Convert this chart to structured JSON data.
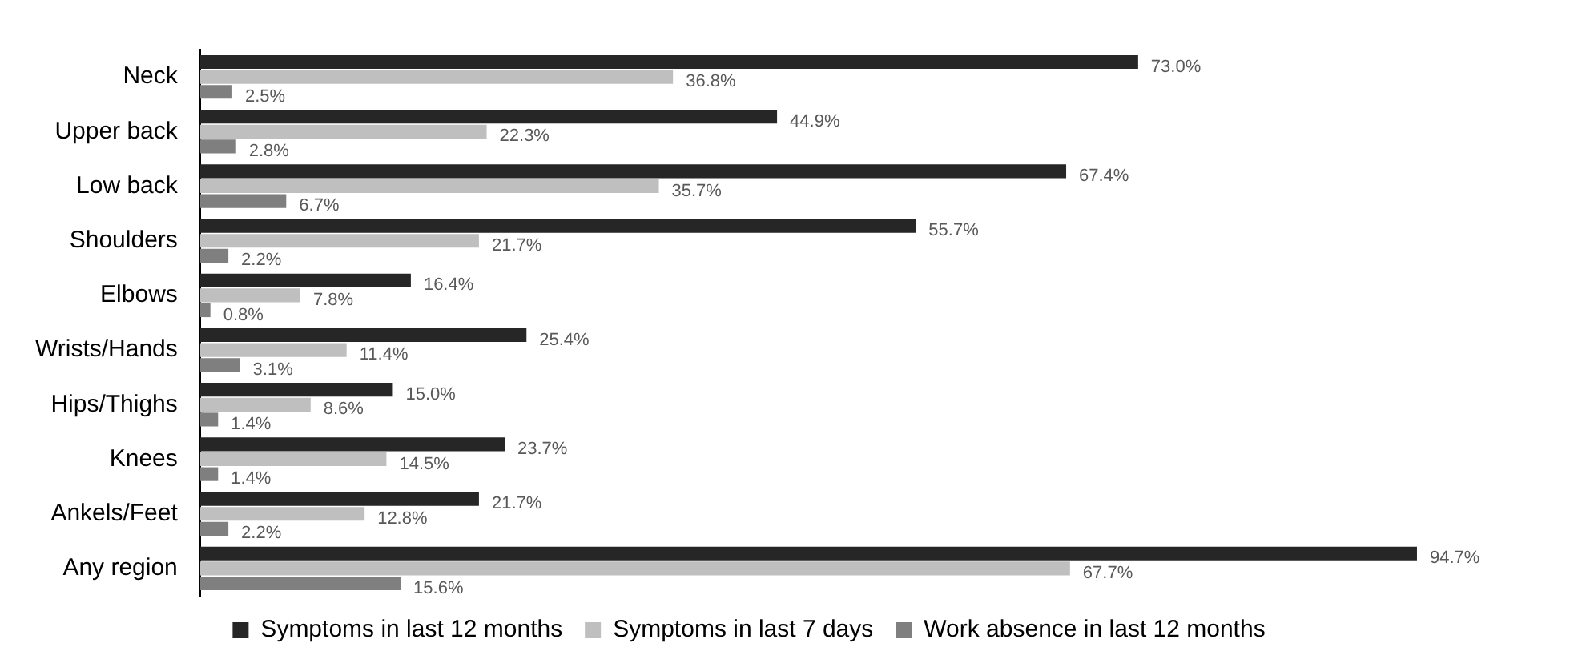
{
  "chart_data": {
    "type": "bar",
    "orientation": "horizontal",
    "categories": [
      "Neck",
      "Upper back",
      "Low back",
      "Shoulders",
      "Elbows",
      "Wrists/Hands",
      "Hips/Thighs",
      "Knees",
      "Ankels/Feet",
      "Any region"
    ],
    "series": [
      {
        "name": "Symptoms in last 12 months",
        "color": "#262626",
        "values": [
          73.0,
          44.9,
          67.4,
          55.7,
          16.4,
          25.4,
          15.0,
          23.7,
          21.7,
          94.7
        ],
        "value_labels": [
          "73.0%",
          "44.9%",
          "67.4%",
          "55.7%",
          "16.4%",
          "25.4%",
          "15.0%",
          "23.7%",
          "21.7%",
          "94.7%"
        ]
      },
      {
        "name": "Symptoms in last 7 days",
        "color": "#bfbfbf",
        "values": [
          36.8,
          22.3,
          35.7,
          21.7,
          7.8,
          11.4,
          8.6,
          14.5,
          12.8,
          67.7
        ],
        "value_labels": [
          "36.8%",
          "22.3%",
          "35.7%",
          "21.7%",
          "7.8%",
          "11.4%",
          "8.6%",
          "14.5%",
          "12.8%",
          "67.7%"
        ]
      },
      {
        "name": "Work absence in last 12 months",
        "color": "#7f7f7f",
        "values": [
          2.5,
          2.8,
          6.7,
          2.2,
          0.8,
          3.1,
          1.4,
          1.4,
          2.2,
          15.6
        ],
        "value_labels": [
          "2.5%",
          "2.8%",
          "6.7%",
          "2.2%",
          "0.8%",
          "3.1%",
          "1.4%",
          "1.4%",
          "2.2%",
          "15.6%"
        ]
      }
    ],
    "grid": false,
    "legend": "bottom",
    "tick_labels": "y"
  }
}
